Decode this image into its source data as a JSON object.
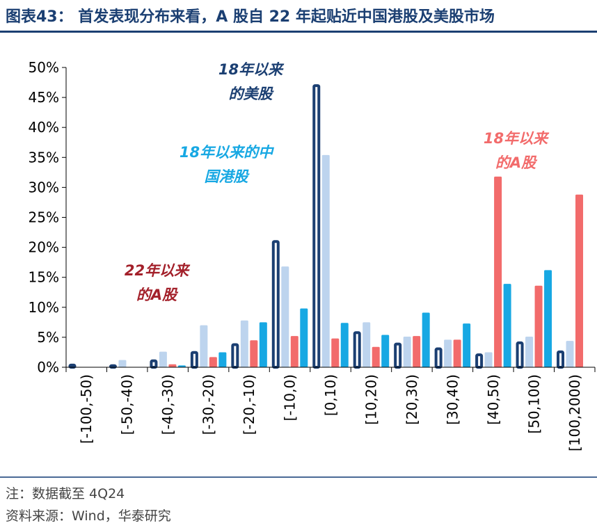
{
  "header": {
    "title": "图表43：  首发表现分布来看，A 股自 22 年起贴近中国港股及美股市场"
  },
  "footer": {
    "note": "注：数据截至 4Q24",
    "source": "资料来源：Wind，华泰研究"
  },
  "chart_data": {
    "type": "bar",
    "title": "",
    "xlabel": "",
    "ylabel": "",
    "ylim": [
      0,
      50
    ],
    "yticks": [
      "0%",
      "5%",
      "10%",
      "15%",
      "20%",
      "25%",
      "30%",
      "35%",
      "40%",
      "45%",
      "50%"
    ],
    "categories": [
      "[-100,-50)",
      "[-50,-40)",
      "[-40,-30)",
      "[-30,-20)",
      "[-20,-10)",
      "[-10,0)",
      "[0,10)",
      "[10,20)",
      "[20,30)",
      "[30,40)",
      "[40,50)",
      "[50,100)",
      "[100,2000)"
    ],
    "series": [
      {
        "name": "18年以来的美股",
        "color": "#1b3f72",
        "values": [
          0.6,
          0.5,
          1.3,
          2.7,
          4.0,
          21.2,
          47.2,
          6.0,
          4.1,
          3.3,
          2.3,
          4.3,
          2.8
        ]
      },
      {
        "name": "18年以来的中国港股(浅)",
        "color": "#bdd4ee",
        "values": [
          0.0,
          1.2,
          2.6,
          7.0,
          7.8,
          16.8,
          35.4,
          7.5,
          5.1,
          4.6,
          2.5,
          5.1,
          4.4
        ]
      },
      {
        "name": "22年以来的A股",
        "color": "#f26b6b",
        "values": [
          0.0,
          0.0,
          0.5,
          1.7,
          4.5,
          5.2,
          4.8,
          3.4,
          5.2,
          4.6,
          31.8,
          13.6,
          28.8
        ]
      },
      {
        "name": "18年以来的中国港股",
        "color": "#17a8e3",
        "values": [
          0.0,
          0.0,
          0.3,
          2.5,
          7.5,
          9.8,
          7.4,
          5.4,
          9.1,
          7.3,
          13.9,
          16.2,
          0.0
        ]
      }
    ],
    "annotations": [
      {
        "line1": "18年以来",
        "line2": "的美股",
        "color": "#1b3f72"
      },
      {
        "line1": "18年以来的中",
        "line2": "国港股",
        "color": "#17a8e3"
      },
      {
        "line1": "18年以来",
        "line2": "的A股",
        "color": "#f26b6b"
      },
      {
        "line1": "22年以来",
        "line2": "的A股",
        "color": "#a3202a"
      }
    ]
  }
}
